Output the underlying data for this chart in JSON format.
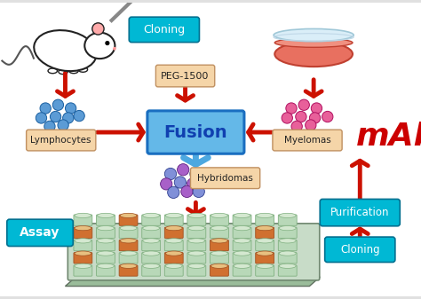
{
  "background_color": "#ffffff",
  "border_color": "#aaaaaa",
  "labels": {
    "cloning_top": "Cloning",
    "peg": "PEG-1500",
    "fusion": "Fusion",
    "lymphocytes": "Lymphocytes",
    "myelomas": "Myelomas",
    "hybridomas": "Hybridomas",
    "assay": "Assay",
    "purification": "Purification",
    "cloning_bottom": "Cloning",
    "mab": "mAb"
  },
  "colors": {
    "cyan_box": "#00b8d4",
    "peach_box": "#f5d5a8",
    "fusion_box_face": "#64b8e8",
    "fusion_box_edge": "#1a6ec0",
    "fusion_text": "#1040b0",
    "mab_text": "#cc0000",
    "arrow_red": "#cc1100",
    "arrow_blue": "#4da8e0",
    "blue_dots": "#5b9bd5",
    "blue_dots_edge": "#1a5fa0",
    "pink_dots": "#e8609a",
    "pink_dots_edge": "#b01060",
    "mixed_blue": "#8090d8",
    "mixed_purple": "#a860c8",
    "well_green": "#b8d8b8",
    "well_orange": "#d07030",
    "well_green_edge": "#80b080",
    "well_orange_edge": "#a05020",
    "tray_face": "#c8dcc8",
    "tray_edge": "#708870"
  },
  "layout": {
    "fig_width": 4.74,
    "fig_height": 3.37,
    "dpi": 100
  }
}
